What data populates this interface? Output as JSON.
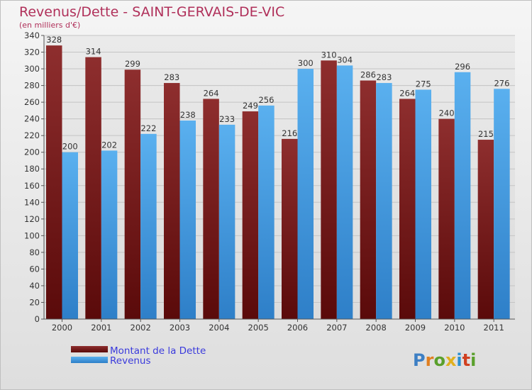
{
  "chart_data": {
    "type": "bar",
    "title": "Revenus/Dette - SAINT-GERVAIS-DE-VIC",
    "subtitle": "(en milliers d'€)",
    "categories": [
      "2000",
      "2001",
      "2002",
      "2003",
      "2004",
      "2005",
      "2006",
      "2007",
      "2008",
      "2009",
      "2010",
      "2011"
    ],
    "series": [
      {
        "name": "Montant de la Dette",
        "color": "#7a1c1c",
        "values": [
          328,
          314,
          299,
          283,
          264,
          249,
          216,
          310,
          286,
          264,
          240,
          215
        ]
      },
      {
        "name": "Revenus",
        "color": "#4a9fe0",
        "values": [
          200,
          202,
          222,
          238,
          233,
          256,
          300,
          304,
          283,
          275,
          296,
          276
        ]
      }
    ],
    "ylim": [
      0,
      340
    ],
    "yticks": [
      0,
      20,
      40,
      60,
      80,
      100,
      120,
      140,
      160,
      180,
      200,
      220,
      240,
      260,
      280,
      300,
      320,
      340
    ],
    "grid": true,
    "legend_placement": "bottom-left"
  },
  "logo": {
    "text": "Proxiti"
  }
}
